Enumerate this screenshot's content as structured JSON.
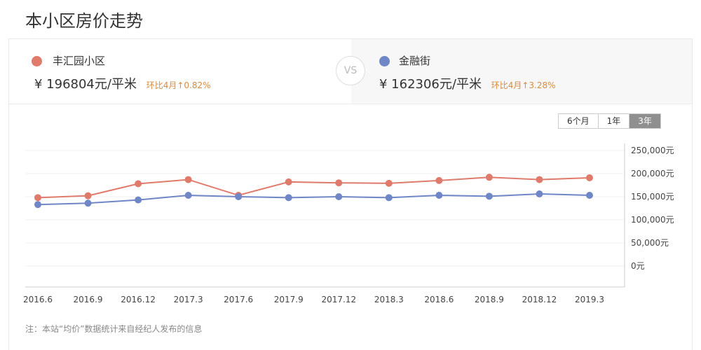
{
  "page_title": "本小区房价走势",
  "compare": {
    "left": {
      "name": "丰汇园小区",
      "price": "¥ 196804元/平米",
      "change": "环比4月↑0.82%",
      "color": "#e07a6b"
    },
    "vs_label": "VS",
    "right": {
      "name": "金融街",
      "price": "¥ 162306元/平米",
      "change": "环比4月↑3.28%",
      "color": "#6f87c6"
    }
  },
  "range_tabs": [
    {
      "label": "6个月",
      "active": false
    },
    {
      "label": "1年",
      "active": false
    },
    {
      "label": "3年",
      "active": true
    }
  ],
  "note": "注：本站“均价”数据统计来自经纪人发布的信息",
  "chart_data": {
    "type": "line",
    "categories": [
      "2016.6",
      "2016.9",
      "2016.12",
      "2017.3",
      "2017.6",
      "2017.9",
      "2017.12",
      "2018.3",
      "2018.6",
      "2018.9",
      "2018.12",
      "2019.3"
    ],
    "series": [
      {
        "name": "丰汇园小区",
        "color": "#e07a6b",
        "values": [
          148000,
          152000,
          178000,
          187000,
          153000,
          182000,
          180000,
          179000,
          185000,
          192000,
          187000,
          191000
        ]
      },
      {
        "name": "金融街",
        "color": "#6f87c6",
        "values": [
          133000,
          136000,
          143000,
          153000,
          150000,
          148000,
          150000,
          148000,
          153000,
          151000,
          156000,
          153000
        ]
      }
    ],
    "yticks": [
      "0元",
      "50,000元",
      "100,000元",
      "150,000元",
      "200,000元",
      "250,000元"
    ],
    "ylim": [
      0,
      250000
    ],
    "grid": true,
    "title": "",
    "xlabel": "",
    "ylabel": ""
  }
}
